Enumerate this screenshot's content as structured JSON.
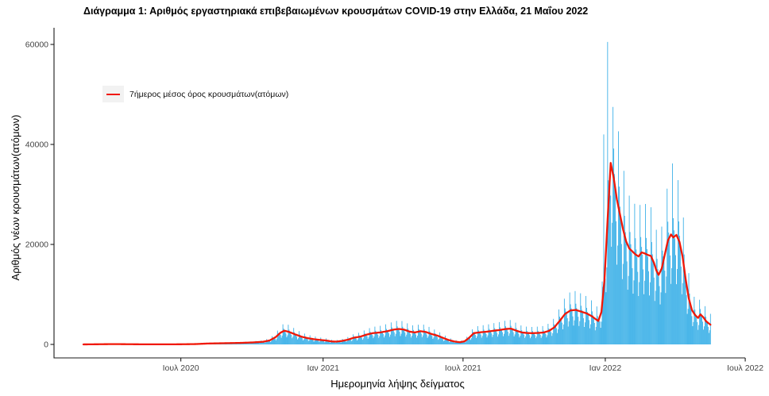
{
  "chart_data": {
    "type": "bar+line",
    "title": "Διάγραμμα 1: Αριθμός εργαστηριακά επιβεβαιωμένων κρουσμάτων COVID-19 στην Ελλάδα, 21 Μαΐου 2022",
    "xlabel": "Ημερομηνία λήψης δείγματος",
    "ylabel": "Αριθμός νέων κρουσμάτων(ατόμων)",
    "legend": [
      {
        "label": "7ήμερος μέσος όρος κρουσμάτων(ατόμων)",
        "color": "#F01807",
        "key_background": "#F2F2F2"
      }
    ],
    "legend_position": "inside-top-left",
    "grid": false,
    "colors": {
      "bars": "#27A8E5",
      "line": "#F01807",
      "axis": "#1a1a1a",
      "tick_text": "#444444"
    },
    "ylim": [
      0,
      60500
    ],
    "x_domain": [
      "2020-02-26",
      "2022-07-04"
    ],
    "y_ticks": [
      {
        "value": 0,
        "label": "0"
      },
      {
        "value": 20000,
        "label": "20000"
      },
      {
        "value": 40000,
        "label": "40000"
      },
      {
        "value": 60000,
        "label": "60000"
      }
    ],
    "x_ticks": [
      {
        "date": "2020-07-01",
        "label": "Ιουλ 2020"
      },
      {
        "date": "2021-01-01",
        "label": "Ιαν 2021"
      },
      {
        "date": "2021-07-01",
        "label": "Ιουλ 2021"
      },
      {
        "date": "2022-01-01",
        "label": "Ιαν 2022"
      },
      {
        "date": "2022-07-01",
        "label": "Ιουλ 2022"
      }
    ],
    "avg_series": [
      [
        "2020-02-26",
        5
      ],
      [
        "2020-03-20",
        40
      ],
      [
        "2020-04-05",
        65
      ],
      [
        "2020-04-25",
        40
      ],
      [
        "2020-05-15",
        18
      ],
      [
        "2020-06-10",
        15
      ],
      [
        "2020-07-01",
        30
      ],
      [
        "2020-07-20",
        70
      ],
      [
        "2020-08-05",
        180
      ],
      [
        "2020-08-25",
        240
      ],
      [
        "2020-09-15",
        300
      ],
      [
        "2020-10-01",
        390
      ],
      [
        "2020-10-15",
        520
      ],
      [
        "2020-10-24",
        800
      ],
      [
        "2020-11-01",
        1500
      ],
      [
        "2020-11-07",
        2350
      ],
      [
        "2020-11-12",
        2750
      ],
      [
        "2020-11-18",
        2500
      ],
      [
        "2020-11-26",
        2000
      ],
      [
        "2020-12-04",
        1550
      ],
      [
        "2020-12-12",
        1250
      ],
      [
        "2020-12-20",
        1050
      ],
      [
        "2020-12-28",
        900
      ],
      [
        "2021-01-05",
        780
      ],
      [
        "2021-01-12",
        600
      ],
      [
        "2021-01-18",
        560
      ],
      [
        "2021-01-25",
        680
      ],
      [
        "2021-02-02",
        950
      ],
      [
        "2021-02-10",
        1350
      ],
      [
        "2021-02-18",
        1550
      ],
      [
        "2021-02-26",
        1950
      ],
      [
        "2021-03-06",
        2250
      ],
      [
        "2021-03-16",
        2400
      ],
      [
        "2021-03-25",
        2650
      ],
      [
        "2021-04-02",
        2950
      ],
      [
        "2021-04-09",
        3100
      ],
      [
        "2021-04-16",
        2950
      ],
      [
        "2021-04-23",
        2550
      ],
      [
        "2021-04-30",
        2400
      ],
      [
        "2021-05-07",
        2650
      ],
      [
        "2021-05-14",
        2480
      ],
      [
        "2021-05-21",
        2100
      ],
      [
        "2021-05-29",
        1750
      ],
      [
        "2021-06-06",
        1250
      ],
      [
        "2021-06-13",
        850
      ],
      [
        "2021-06-20",
        580
      ],
      [
        "2021-06-27",
        440
      ],
      [
        "2021-07-03",
        620
      ],
      [
        "2021-07-09",
        1350
      ],
      [
        "2021-07-15",
        2250
      ],
      [
        "2021-07-23",
        2420
      ],
      [
        "2021-08-01",
        2550
      ],
      [
        "2021-08-10",
        2750
      ],
      [
        "2021-08-18",
        2900
      ],
      [
        "2021-08-26",
        3100
      ],
      [
        "2021-09-01",
        3150
      ],
      [
        "2021-09-08",
        2750
      ],
      [
        "2021-09-15",
        2400
      ],
      [
        "2021-09-22",
        2280
      ],
      [
        "2021-09-29",
        2250
      ],
      [
        "2021-10-06",
        2300
      ],
      [
        "2021-10-13",
        2380
      ],
      [
        "2021-10-20",
        2700
      ],
      [
        "2021-10-27",
        3400
      ],
      [
        "2021-11-03",
        4700
      ],
      [
        "2021-11-10",
        6100
      ],
      [
        "2021-11-17",
        6800
      ],
      [
        "2021-11-24",
        6900
      ],
      [
        "2021-12-01",
        6550
      ],
      [
        "2021-12-08",
        6200
      ],
      [
        "2021-12-15",
        5600
      ],
      [
        "2021-12-20",
        5000
      ],
      [
        "2021-12-23",
        4700
      ],
      [
        "2021-12-27",
        6500
      ],
      [
        "2021-12-31",
        13000
      ],
      [
        "2022-01-04",
        25000
      ],
      [
        "2022-01-08",
        36300
      ],
      [
        "2022-01-12",
        33200
      ],
      [
        "2022-01-16",
        29000
      ],
      [
        "2022-01-20",
        26000
      ],
      [
        "2022-01-24",
        23000
      ],
      [
        "2022-01-28",
        20600
      ],
      [
        "2022-02-01",
        19200
      ],
      [
        "2022-02-05",
        18600
      ],
      [
        "2022-02-09",
        18000
      ],
      [
        "2022-02-13",
        17600
      ],
      [
        "2022-02-17",
        18400
      ],
      [
        "2022-02-21",
        18200
      ],
      [
        "2022-02-25",
        17900
      ],
      [
        "2022-03-01",
        17700
      ],
      [
        "2022-03-05",
        16300
      ],
      [
        "2022-03-08",
        14800
      ],
      [
        "2022-03-11",
        13900
      ],
      [
        "2022-03-15",
        15200
      ],
      [
        "2022-03-19",
        18000
      ],
      [
        "2022-03-23",
        20800
      ],
      [
        "2022-03-27",
        22000
      ],
      [
        "2022-03-30",
        21400
      ],
      [
        "2022-04-03",
        21900
      ],
      [
        "2022-04-07",
        20500
      ],
      [
        "2022-04-11",
        17500
      ],
      [
        "2022-04-15",
        13000
      ],
      [
        "2022-04-19",
        9200
      ],
      [
        "2022-04-23",
        6900
      ],
      [
        "2022-04-27",
        5900
      ],
      [
        "2022-05-01",
        5300
      ],
      [
        "2022-05-04",
        6000
      ],
      [
        "2022-05-08",
        5400
      ],
      [
        "2022-05-11",
        4700
      ],
      [
        "2022-05-14",
        4300
      ],
      [
        "2022-05-17",
        3950
      ]
    ],
    "weekday_factors": [
      0.55,
      0.7,
      1.55,
      1.18,
      1.06,
      0.98,
      0.82
    ],
    "bar_overrides": {
      "2021-12-30": 42000,
      "2022-01-04": 60500,
      "2022-01-11": 47500,
      "2022-03-29": 36200
    },
    "peak_bar": {
      "date": "2022-01-04",
      "value": 60500
    },
    "peak_average": {
      "date": "2022-01-08",
      "value": 36300
    }
  }
}
